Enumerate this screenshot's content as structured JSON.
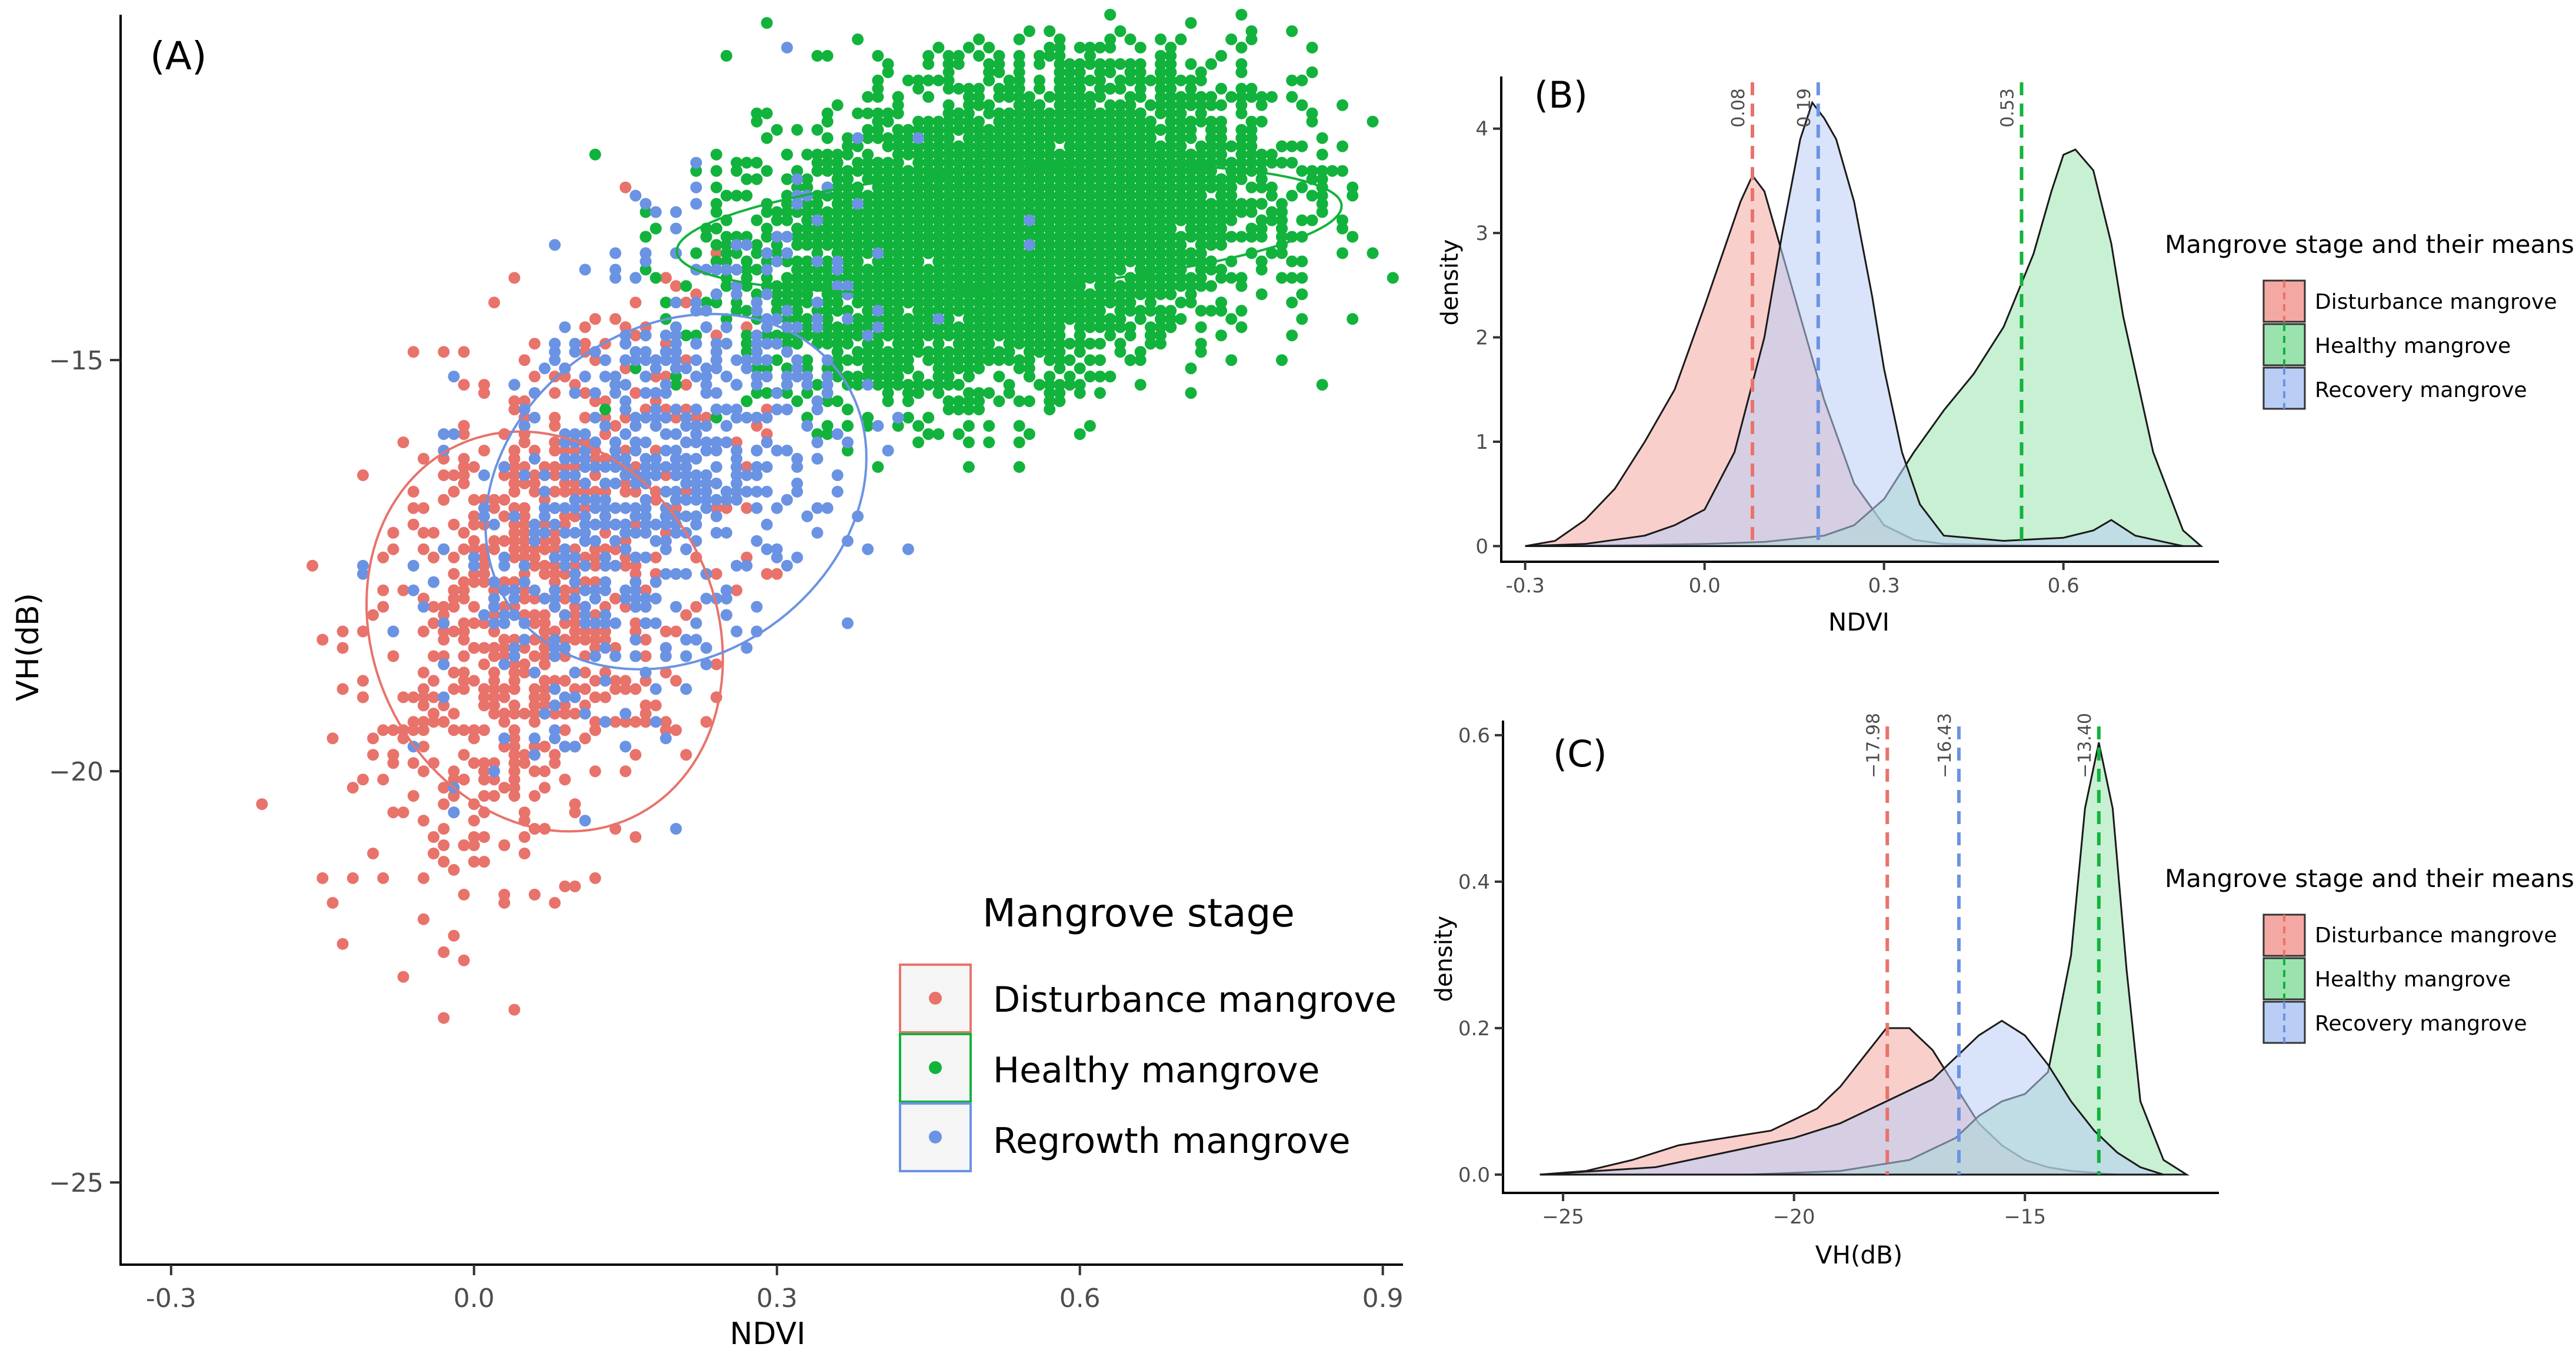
{
  "chart_data": [
    {
      "panel": "(A)",
      "type": "scatter",
      "xlabel": "NDVI",
      "ylabel": "VH(dB)",
      "xlim": [
        -0.35,
        0.92
      ],
      "ylim": [
        -26,
        -10.8
      ],
      "xticks": [
        -0.3,
        0.0,
        0.3,
        0.6,
        0.9
      ],
      "xtick_labels": [
        "-0.3",
        "0.0",
        "0.3",
        "0.6",
        "0.9"
      ],
      "yticks": [
        -25,
        -20,
        -15
      ],
      "ytick_labels": [
        "−25",
        "−20",
        "−15"
      ],
      "legend_title": "Mangrove stage",
      "series": [
        {
          "name": "Disturbance mangrove",
          "color": "#e8736b",
          "ellipse": {
            "cx": 0.07,
            "cy": -18.3,
            "rx": 0.17,
            "ry": 5.0,
            "angle": 25
          },
          "cloud": {
            "mx": 0.07,
            "my": -17.9,
            "sx": 0.085,
            "sy": 1.6,
            "rho": 0.45,
            "n": 900
          }
        },
        {
          "name": "Healthy mangrove",
          "color": "#12b33c",
          "ellipse": {
            "cx": 0.53,
            "cy": -13.4,
            "rx": 0.33,
            "ry": 1.45,
            "angle": 4
          },
          "cloud": {
            "mx": 0.53,
            "my": -13.4,
            "sx": 0.12,
            "sy": 0.9,
            "rho": 0.3,
            "n": 5200
          }
        },
        {
          "name": "Regrowth mangrove",
          "color": "#6b93e3",
          "ellipse": {
            "cx": 0.2,
            "cy": -16.6,
            "rx": 0.2,
            "ry": 4.0,
            "angle": 35
          },
          "cloud": {
            "mx": 0.19,
            "my": -16.4,
            "sx": 0.1,
            "sy": 1.5,
            "rho": 0.5,
            "n": 650
          }
        }
      ]
    },
    {
      "panel": "(B)",
      "type": "area",
      "xlabel": "NDVI",
      "ylabel": "density",
      "xlim": [
        -0.34,
        0.86
      ],
      "ylim": [
        -0.15,
        4.5
      ],
      "xticks": [
        -0.3,
        0.0,
        0.3,
        0.6
      ],
      "xtick_labels": [
        "-0.3",
        "0.0",
        "0.3",
        "0.6"
      ],
      "yticks": [
        0,
        1,
        2,
        3,
        4
      ],
      "ytick_labels": [
        "0",
        "1",
        "2",
        "3",
        "4"
      ],
      "legend_title": "Mangrove stage and their means",
      "series": [
        {
          "name": "Disturbance mangrove",
          "color": "#f4a8a3",
          "line": "#e8736b",
          "mean": 0.08,
          "mean_label": "0.08",
          "x": [
            -0.3,
            -0.25,
            -0.2,
            -0.15,
            -0.1,
            -0.05,
            0.0,
            0.03,
            0.06,
            0.08,
            0.1,
            0.12,
            0.15,
            0.2,
            0.25,
            0.3,
            0.35,
            0.4,
            0.5,
            0.6,
            0.7,
            0.8
          ],
          "y": [
            0.0,
            0.05,
            0.25,
            0.55,
            1.0,
            1.5,
            2.3,
            2.8,
            3.3,
            3.55,
            3.4,
            3.0,
            2.4,
            1.4,
            0.6,
            0.2,
            0.06,
            0.02,
            0.01,
            0.0,
            0.0,
            0.0
          ]
        },
        {
          "name": "Healthy mangrove",
          "color": "#9be3ae",
          "line": "#12b33c",
          "mean": 0.53,
          "mean_label": "0.53",
          "x": [
            -0.3,
            -0.1,
            0.0,
            0.1,
            0.2,
            0.25,
            0.3,
            0.35,
            0.4,
            0.45,
            0.5,
            0.55,
            0.58,
            0.6,
            0.62,
            0.65,
            0.68,
            0.7,
            0.75,
            0.8,
            0.83
          ],
          "y": [
            0.0,
            0.01,
            0.02,
            0.04,
            0.1,
            0.2,
            0.45,
            0.9,
            1.3,
            1.65,
            2.1,
            2.8,
            3.4,
            3.75,
            3.8,
            3.6,
            2.9,
            2.2,
            0.9,
            0.15,
            0.0
          ]
        },
        {
          "name": "Recovery mangrove",
          "color": "#b9cdf5",
          "line": "#6b93e3",
          "mean": 0.19,
          "mean_label": "0.19",
          "x": [
            -0.3,
            -0.2,
            -0.1,
            -0.05,
            0.0,
            0.05,
            0.1,
            0.13,
            0.16,
            0.18,
            0.2,
            0.22,
            0.25,
            0.28,
            0.3,
            0.33,
            0.36,
            0.4,
            0.5,
            0.6,
            0.65,
            0.68,
            0.72,
            0.8
          ],
          "y": [
            0.0,
            0.02,
            0.1,
            0.2,
            0.35,
            0.9,
            2.0,
            3.0,
            3.9,
            4.25,
            4.1,
            3.9,
            3.3,
            2.4,
            1.7,
            0.9,
            0.4,
            0.1,
            0.05,
            0.08,
            0.15,
            0.25,
            0.1,
            0.0
          ]
        }
      ]
    },
    {
      "panel": "(C)",
      "type": "area",
      "xlabel": "VH(dB)",
      "ylabel": "density",
      "xlim": [
        -26.3,
        -10.8
      ],
      "ylim": [
        -0.025,
        0.62
      ],
      "xticks": [
        -25,
        -20,
        -15
      ],
      "xtick_labels": [
        "−25",
        "−20",
        "−15"
      ],
      "yticks": [
        0.0,
        0.2,
        0.4,
        0.6
      ],
      "ytick_labels": [
        "0.0",
        "0.2",
        "0.4",
        "0.6"
      ],
      "legend_title": "Mangrove stage and their means",
      "series": [
        {
          "name": "Disturbance mangrove",
          "color": "#f4a8a3",
          "line": "#e8736b",
          "mean": -17.98,
          "mean_label": "−17.98",
          "x": [
            -25.5,
            -24.5,
            -23.5,
            -22.5,
            -21.5,
            -20.5,
            -19.5,
            -19,
            -18.5,
            -18,
            -17.5,
            -17,
            -16.5,
            -16,
            -15.5,
            -15,
            -14.5,
            -14,
            -13
          ],
          "y": [
            0.0,
            0.005,
            0.02,
            0.04,
            0.05,
            0.06,
            0.09,
            0.12,
            0.16,
            0.2,
            0.2,
            0.17,
            0.12,
            0.07,
            0.04,
            0.02,
            0.01,
            0.005,
            0.0
          ]
        },
        {
          "name": "Healthy mangrove",
          "color": "#9be3ae",
          "line": "#12b33c",
          "mean": -13.4,
          "mean_label": "−13.40",
          "x": [
            -25.5,
            -21,
            -19,
            -17.5,
            -16.5,
            -16,
            -15.5,
            -15,
            -14.5,
            -14,
            -13.7,
            -13.4,
            -13.1,
            -12.8,
            -12.5,
            -12,
            -11.5
          ],
          "y": [
            0.0,
            0.0,
            0.005,
            0.02,
            0.05,
            0.08,
            0.1,
            0.11,
            0.14,
            0.3,
            0.5,
            0.59,
            0.5,
            0.28,
            0.1,
            0.02,
            0.0
          ]
        },
        {
          "name": "Recovery mangrove",
          "color": "#b9cdf5",
          "line": "#6b93e3",
          "mean": -16.43,
          "mean_label": "−16.43",
          "x": [
            -25.5,
            -23,
            -21.5,
            -20,
            -19,
            -18,
            -17,
            -16.5,
            -16,
            -15.5,
            -15,
            -14.5,
            -14,
            -13.5,
            -13,
            -12.5,
            -12
          ],
          "y": [
            0.0,
            0.01,
            0.03,
            0.05,
            0.07,
            0.1,
            0.13,
            0.16,
            0.19,
            0.21,
            0.19,
            0.15,
            0.1,
            0.06,
            0.03,
            0.01,
            0.0
          ]
        }
      ]
    }
  ]
}
